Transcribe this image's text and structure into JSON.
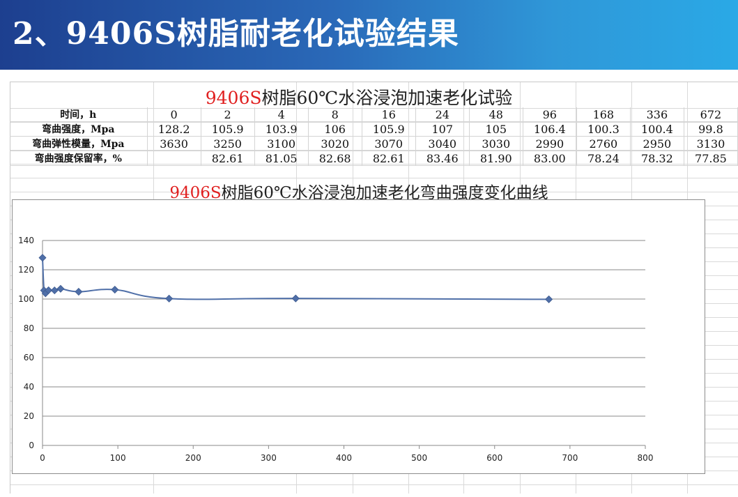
{
  "banner": {
    "title": "2、9406S树脂耐老化试验结果"
  },
  "table": {
    "title_prefix": "9406S",
    "title_rest": "树脂60℃水浴浸泡加速老化试验",
    "rows": [
      {
        "label": "时间，h",
        "values": [
          "0",
          "2",
          "4",
          "8",
          "16",
          "24",
          "48",
          "96",
          "168",
          "336",
          "672"
        ]
      },
      {
        "label": "弯曲强度，Mpa",
        "values": [
          "128.2",
          "105.9",
          "103.9",
          "106",
          "105.9",
          "107",
          "105",
          "106.4",
          "100.3",
          "100.4",
          "99.8"
        ]
      },
      {
        "label": "弯曲弹性模量，Mpa",
        "values": [
          "3630",
          "3250",
          "3100",
          "3020",
          "3070",
          "3040",
          "3030",
          "2990",
          "2760",
          "2950",
          "3130"
        ]
      },
      {
        "label": "弯曲强度保留率，%",
        "values": [
          "",
          "82.61",
          "81.05",
          "82.68",
          "82.61",
          "83.46",
          "81.90",
          "83.00",
          "78.24",
          "78.32",
          "77.85"
        ]
      }
    ]
  },
  "chart_data": {
    "type": "scatter",
    "title_prefix": "9406S",
    "title_rest": "树脂60℃水浴浸泡加速老化弯曲强度变化曲线",
    "x": [
      0,
      2,
      4,
      8,
      16,
      24,
      48,
      96,
      168,
      336,
      672
    ],
    "y": [
      128.2,
      105.9,
      103.9,
      106,
      105.9,
      107,
      105,
      106.4,
      100.3,
      100.4,
      99.8
    ],
    "xlim": [
      0,
      800
    ],
    "ylim": [
      0,
      140
    ],
    "xticks": [
      0,
      100,
      200,
      300,
      400,
      500,
      600,
      700,
      800
    ],
    "yticks": [
      0,
      20,
      40,
      60,
      80,
      100,
      120,
      140
    ],
    "grid": "horizontal",
    "line": "smooth",
    "legend": "none",
    "series_color": "#4f6fa8"
  }
}
